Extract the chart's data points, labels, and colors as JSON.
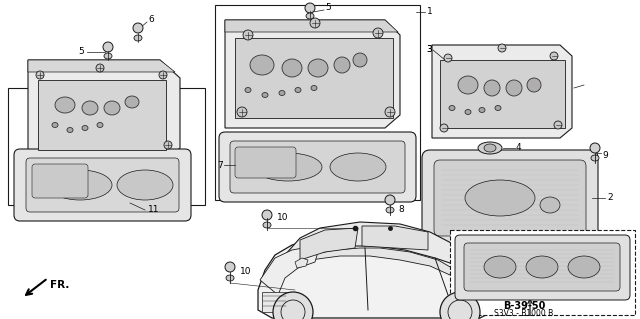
{
  "bg_color": "#ffffff",
  "fig_width": 6.4,
  "fig_height": 3.19,
  "line_color": "#1a1a1a",
  "ref_code": "B-39-50",
  "ref_sub": "S3V3 - B1000 B",
  "fr_label": "FR.",
  "label_fs": 6.5,
  "part_fill": "#e8e8e8",
  "part_fill2": "#d0d0d0",
  "part_fill3": "#c0c0c0",
  "part_stroke": "#333333"
}
